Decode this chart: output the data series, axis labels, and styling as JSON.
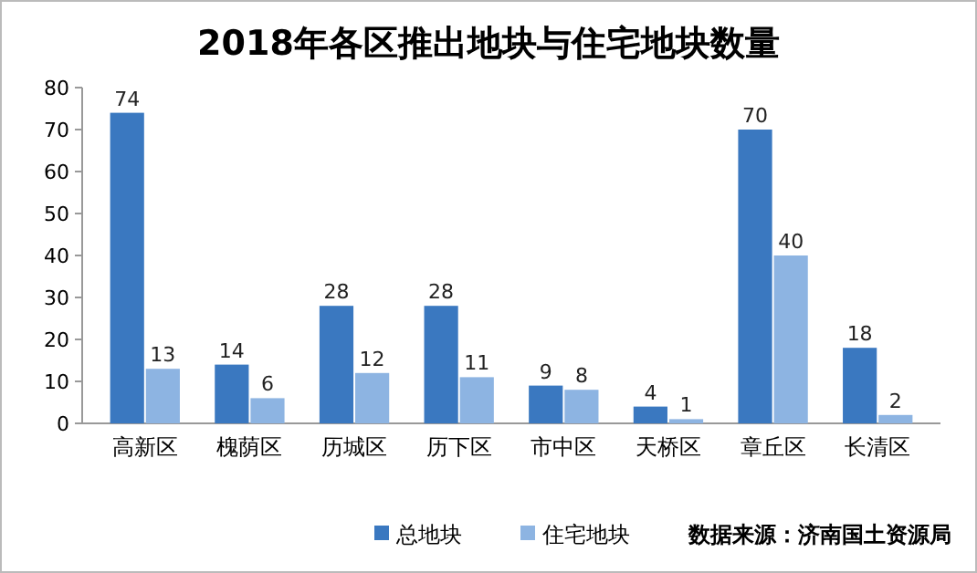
{
  "chart_data": {
    "type": "bar",
    "title": "2018年各区推出地块与住宅地块数量",
    "categories": [
      "高新区",
      "槐荫区",
      "历城区",
      "历下区",
      "市中区",
      "天桥区",
      "章丘区",
      "长清区"
    ],
    "series": [
      {
        "name": "总地块",
        "color": "#3a78c0",
        "values": [
          74,
          14,
          28,
          28,
          9,
          4,
          70,
          18
        ]
      },
      {
        "name": "住宅地块",
        "color": "#8db4e2",
        "values": [
          13,
          6,
          12,
          11,
          8,
          1,
          40,
          2
        ]
      }
    ],
    "ylim": [
      0,
      80
    ],
    "yticks": [
      0,
      10,
      20,
      30,
      40,
      50,
      60,
      70,
      80
    ],
    "data_labels": true,
    "legend": "bottom",
    "annotations": [
      "数据来源：济南国土资源局"
    ]
  }
}
